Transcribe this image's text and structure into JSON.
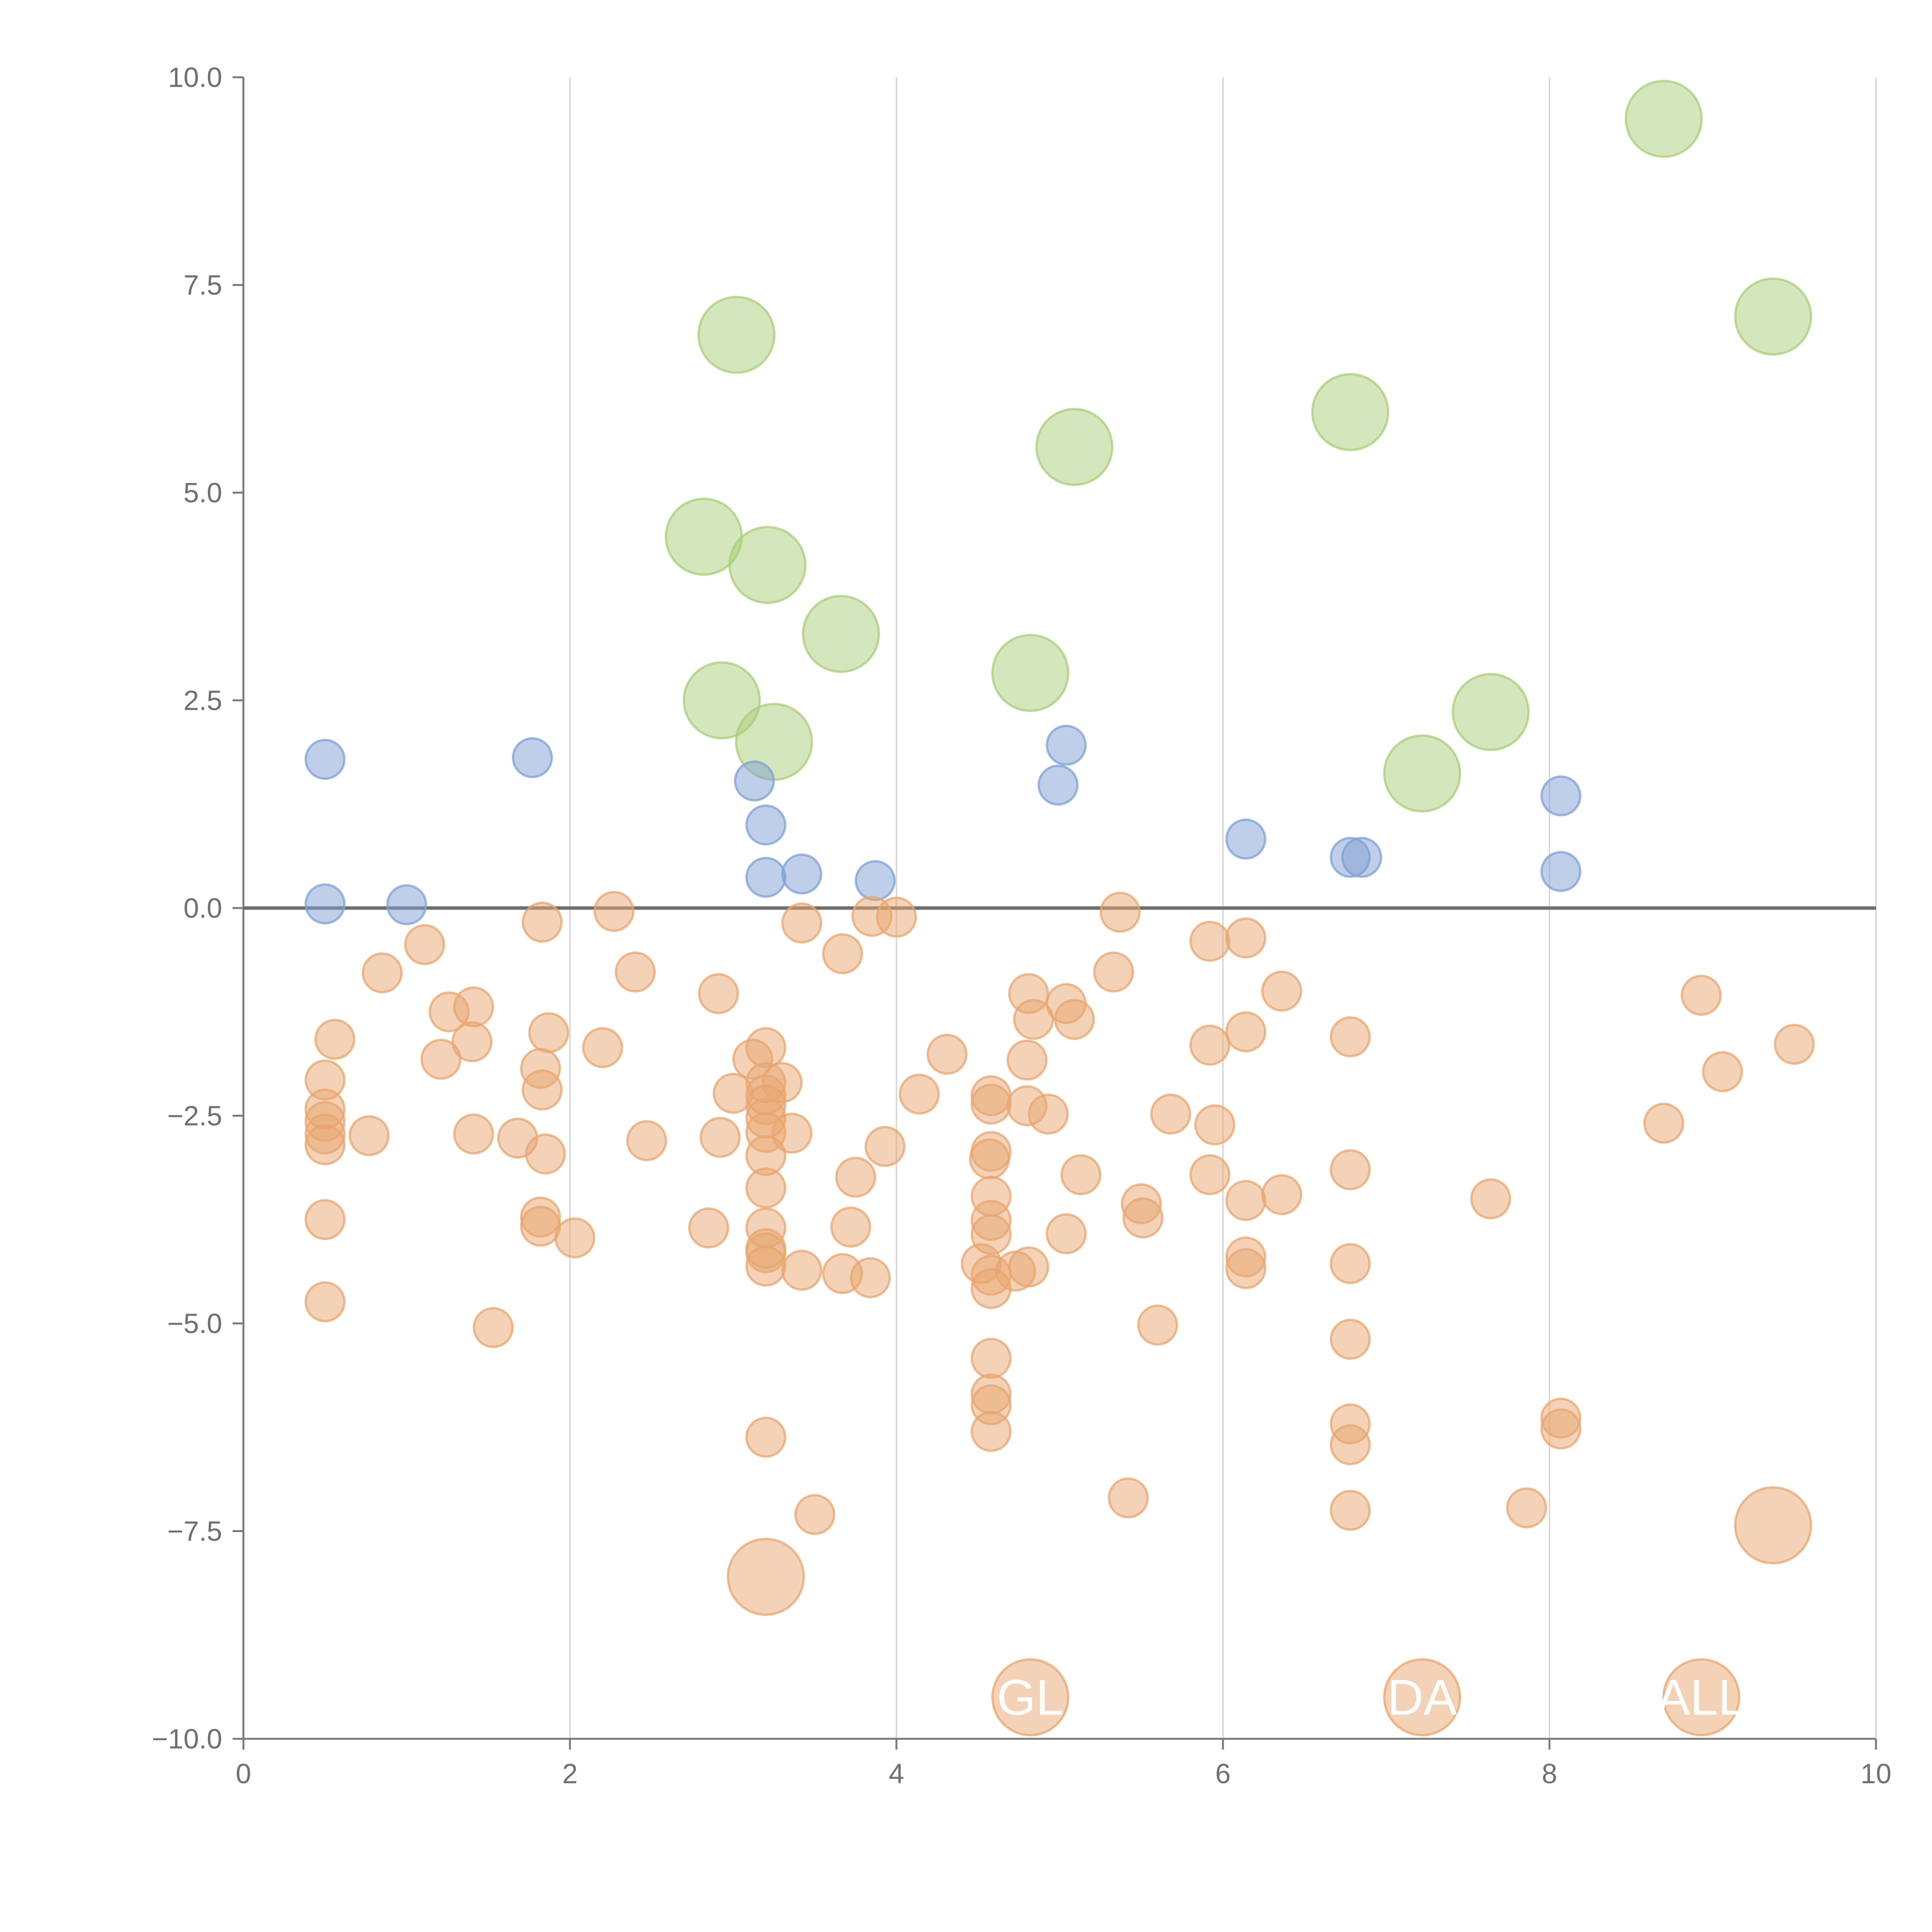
{
  "colors": {
    "blue": "#7fa0d4",
    "green": "#aacd79",
    "orange": "#e8a66f",
    "grid": "#d9d9d9",
    "axis": "#7a7a7a",
    "zero_line": "#6e6e6e",
    "tick_text": "#707070",
    "label_text": "#ffffff"
  },
  "chart_data": {
    "type": "scatter",
    "title": "",
    "xlabel": "",
    "ylabel": "",
    "xlim": [
      0,
      10
    ],
    "ylim": [
      -10,
      10
    ],
    "grid": "vertical",
    "zero_line": true,
    "x_ticks": [
      0,
      2,
      4,
      6,
      8,
      10
    ],
    "x_tick_labels": [
      "0",
      "2",
      "4",
      "6",
      "8",
      "10"
    ],
    "y_ticks": [
      10,
      7.5,
      5,
      2.5,
      0,
      -2.5,
      -5,
      -7.5,
      -10
    ],
    "y_tick_labels": [
      "10.0",
      "7.5",
      "5.0",
      "2.5",
      "0.0",
      "−2.5",
      "−5.0",
      "−7.5",
      "−10.0"
    ],
    "series": [
      {
        "name": "green",
        "color_key": "green",
        "size": "large",
        "points": [
          [
            8.7,
            9.5
          ],
          [
            9.37,
            7.12
          ],
          [
            3.02,
            6.9
          ],
          [
            6.78,
            5.97
          ],
          [
            5.09,
            5.55
          ],
          [
            2.82,
            4.47
          ],
          [
            3.21,
            4.13
          ],
          [
            3.66,
            3.3
          ],
          [
            2.93,
            2.5
          ],
          [
            3.25,
            2.0
          ],
          [
            4.82,
            2.83
          ],
          [
            7.64,
            2.36
          ],
          [
            7.22,
            1.62
          ]
        ]
      },
      {
        "name": "blue",
        "color_key": "blue",
        "size": "small",
        "points": [
          [
            0.5,
            1.79
          ],
          [
            1.77,
            1.81
          ],
          [
            3.13,
            1.53
          ],
          [
            3.2,
            1.0
          ],
          [
            3.2,
            0.37
          ],
          [
            3.42,
            0.41
          ],
          [
            3.87,
            0.33
          ],
          [
            0.5,
            0.05
          ],
          [
            1.0,
            0.04
          ],
          [
            5.04,
            1.96
          ],
          [
            4.99,
            1.48
          ],
          [
            6.14,
            0.83
          ],
          [
            6.78,
            0.61
          ],
          [
            6.85,
            0.61
          ],
          [
            8.07,
            1.35
          ],
          [
            8.07,
            0.44
          ]
        ]
      },
      {
        "name": "orange",
        "color_key": "orange",
        "size": "small",
        "points": [
          [
            1.83,
            -0.17
          ],
          [
            2.27,
            -0.04
          ],
          [
            3.42,
            -0.18
          ],
          [
            3.67,
            -0.55
          ],
          [
            3.85,
            -0.1
          ],
          [
            4.0,
            -0.11
          ],
          [
            5.37,
            -0.05
          ],
          [
            1.11,
            -0.44
          ],
          [
            0.85,
            -0.78
          ],
          [
            2.4,
            -0.77
          ],
          [
            5.33,
            -0.77
          ],
          [
            5.92,
            -0.4
          ],
          [
            6.14,
            -0.36
          ],
          [
            6.36,
            -1.0
          ],
          [
            2.91,
            -1.03
          ],
          [
            4.81,
            -1.03
          ],
          [
            5.04,
            -1.15
          ],
          [
            5.09,
            -1.34
          ],
          [
            4.84,
            -1.34
          ],
          [
            8.93,
            -1.05
          ],
          [
            9.5,
            -1.64
          ],
          [
            9.06,
            -1.97
          ],
          [
            1.26,
            -1.25
          ],
          [
            1.41,
            -1.19
          ],
          [
            1.4,
            -1.61
          ],
          [
            1.87,
            -1.5
          ],
          [
            2.2,
            -1.68
          ],
          [
            0.56,
            -1.58
          ],
          [
            1.21,
            -1.82
          ],
          [
            3.2,
            -1.68
          ],
          [
            3.12,
            -1.82
          ],
          [
            4.31,
            -1.76
          ],
          [
            4.8,
            -1.83
          ],
          [
            5.92,
            -1.65
          ],
          [
            6.14,
            -1.49
          ],
          [
            6.78,
            -1.55
          ],
          [
            0.5,
            -2.07
          ],
          [
            1.82,
            -1.93
          ],
          [
            1.83,
            -2.19
          ],
          [
            3.2,
            -2.1
          ],
          [
            3.3,
            -2.1
          ],
          [
            3.0,
            -2.23
          ],
          [
            3.2,
            -2.25
          ],
          [
            3.2,
            -2.37
          ],
          [
            4.14,
            -2.24
          ],
          [
            4.58,
            -2.26
          ],
          [
            4.58,
            -2.36
          ],
          [
            0.5,
            -2.42
          ],
          [
            0.5,
            -2.57
          ],
          [
            0.5,
            -2.72
          ],
          [
            0.5,
            -2.85
          ],
          [
            0.77,
            -2.74
          ],
          [
            1.41,
            -2.72
          ],
          [
            1.68,
            -2.77
          ],
          [
            1.85,
            -2.96
          ],
          [
            2.47,
            -2.8
          ],
          [
            2.92,
            -2.76
          ],
          [
            3.2,
            -2.53
          ],
          [
            3.2,
            -2.7
          ],
          [
            3.36,
            -2.71
          ],
          [
            3.2,
            -2.98
          ],
          [
            3.93,
            -2.87
          ],
          [
            4.8,
            -2.38
          ],
          [
            4.93,
            -2.48
          ],
          [
            5.68,
            -2.48
          ],
          [
            5.95,
            -2.61
          ],
          [
            8.7,
            -2.59
          ],
          [
            4.58,
            -2.93
          ],
          [
            4.57,
            -3.02
          ],
          [
            3.2,
            -3.37
          ],
          [
            3.75,
            -3.24
          ],
          [
            5.13,
            -3.21
          ],
          [
            5.92,
            -3.21
          ],
          [
            6.78,
            -3.15
          ],
          [
            4.58,
            -3.47
          ],
          [
            6.14,
            -3.52
          ],
          [
            6.36,
            -3.45
          ],
          [
            5.5,
            -3.56
          ],
          [
            5.51,
            -3.73
          ],
          [
            7.64,
            -3.5
          ],
          [
            0.5,
            -3.75
          ],
          [
            1.82,
            -3.72
          ],
          [
            1.82,
            -3.83
          ],
          [
            2.85,
            -3.85
          ],
          [
            3.2,
            -3.85
          ],
          [
            3.72,
            -3.84
          ],
          [
            4.58,
            -3.76
          ],
          [
            4.58,
            -3.93
          ],
          [
            2.03,
            -3.97
          ],
          [
            5.04,
            -3.92
          ],
          [
            3.2,
            -4.1
          ],
          [
            3.2,
            -4.15
          ],
          [
            3.2,
            -4.31
          ],
          [
            3.42,
            -4.36
          ],
          [
            3.67,
            -4.4
          ],
          [
            3.84,
            -4.45
          ],
          [
            4.52,
            -4.28
          ],
          [
            4.58,
            -4.42
          ],
          [
            4.58,
            -4.58
          ],
          [
            4.73,
            -4.37
          ],
          [
            4.81,
            -4.32
          ],
          [
            6.14,
            -4.2
          ],
          [
            6.14,
            -4.34
          ],
          [
            6.78,
            -4.28
          ],
          [
            0.5,
            -4.74
          ],
          [
            1.53,
            -5.05
          ],
          [
            5.6,
            -5.02
          ],
          [
            6.78,
            -5.19
          ],
          [
            4.58,
            -5.42
          ],
          [
            4.58,
            -5.85
          ],
          [
            4.58,
            -5.98
          ],
          [
            4.58,
            -6.3
          ],
          [
            3.2,
            -6.37
          ],
          [
            6.78,
            -6.21
          ],
          [
            6.78,
            -6.46
          ],
          [
            8.07,
            -6.14
          ],
          [
            8.07,
            -6.27
          ],
          [
            5.42,
            -7.1
          ],
          [
            3.5,
            -7.3
          ],
          [
            6.78,
            -7.25
          ],
          [
            7.86,
            -7.22
          ]
        ]
      },
      {
        "name": "orange-large",
        "color_key": "orange",
        "size": "large",
        "points": [
          [
            3.2,
            -8.05
          ],
          [
            9.37,
            -7.43
          ],
          [
            4.82,
            -9.5
          ],
          [
            7.22,
            -9.5
          ],
          [
            8.93,
            -9.5
          ]
        ]
      }
    ],
    "annotations": [
      {
        "text": "GL",
        "x": 4.82,
        "y": -9.5
      },
      {
        "text": "DA",
        "x": 7.22,
        "y": -9.5
      },
      {
        "text": "ALL",
        "x": 8.93,
        "y": -9.5
      }
    ]
  }
}
